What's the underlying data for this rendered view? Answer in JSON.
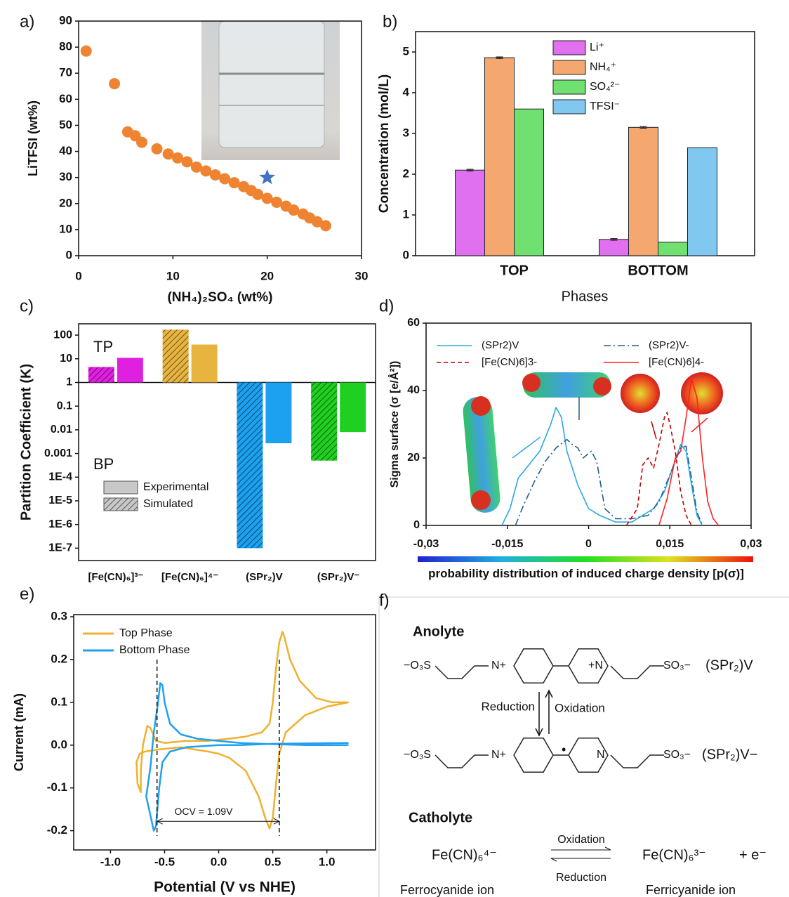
{
  "chart_data": [
    {
      "type": "scatter",
      "panel_label": "a)",
      "xlabel": "(NH₄)₂SO₄ (wt%)",
      "ylabel": "LiTFSI (wt%)",
      "xlim": [
        0,
        30
      ],
      "ylim": [
        0,
        90
      ],
      "xticks": [
        0,
        10,
        20,
        30
      ],
      "yticks": [
        0,
        10,
        20,
        30,
        40,
        50,
        60,
        70,
        80,
        90
      ],
      "series": [
        {
          "color": "#ee8432",
          "marker": "circle",
          "x": [
            0.8,
            3.8,
            5.2,
            6,
            6.7,
            8.3,
            9.5,
            10.5,
            11.5,
            12.5,
            13.5,
            14.5,
            15.5,
            16.5,
            17.5,
            18.3,
            19,
            20,
            21,
            22,
            22.8,
            23.8,
            24.5,
            25.3,
            26.2
          ],
          "values": [
            78.5,
            66,
            47.5,
            46,
            43.5,
            41,
            39,
            37.5,
            36,
            34,
            32.5,
            31,
            29.5,
            28,
            26.5,
            25,
            23.5,
            22,
            20.5,
            19,
            17.5,
            16,
            14.5,
            13,
            11.5
          ]
        },
        {
          "color": "#4472c4",
          "marker": "star",
          "x": [
            20
          ],
          "values": [
            30
          ]
        }
      ]
    },
    {
      "type": "bar",
      "panel_label": "b)",
      "ylabel": "Concentration (mol/L)",
      "xlabel": "Phases",
      "categories": [
        "TOP",
        "BOTTOM"
      ],
      "ylim": [
        0,
        5.5
      ],
      "yticks": [
        0,
        1,
        2,
        3,
        4,
        5
      ],
      "legend": "top-right",
      "series": [
        {
          "name": "Li⁺",
          "color": "#e070f0",
          "values": [
            2.1,
            0.4
          ],
          "errors": [
            0.02,
            0.02
          ]
        },
        {
          "name": "NH₄⁺",
          "color": "#f4a870",
          "values": [
            4.86,
            3.15
          ],
          "errors": [
            0.02,
            0.02
          ]
        },
        {
          "name": "SO₄²⁻",
          "color": "#70e070",
          "values": [
            3.6,
            0.33
          ]
        },
        {
          "name": "TFSI⁻",
          "color": "#80c8f0",
          "values": [
            null,
            2.65
          ]
        }
      ]
    },
    {
      "type": "bar",
      "panel_label": "c)",
      "ylabel": "Partition Coefficient (K)",
      "yscale": "log",
      "bar_base": 1,
      "categories": [
        "[Fe(CN)₆]³⁻",
        "[Fe(CN)₆]⁴⁻",
        "(SPr₂)V",
        "(SPr₂)V⁻"
      ],
      "colors": [
        "#e020e0",
        "#e8b440",
        "#1ca0f0",
        "#20d020"
      ],
      "legend_color": "#c8c8c8",
      "ylim": [
        3e-08,
        300
      ],
      "yticks": [
        {
          "value": 1e-07,
          "label": "1E-7"
        },
        {
          "value": 1e-06,
          "label": "1E-6"
        },
        {
          "value": 1e-05,
          "label": "1E-5"
        },
        {
          "value": 0.0001,
          "label": "1E-4"
        },
        0.001,
        0.01,
        0.1,
        1,
        10,
        100
      ],
      "annotations": [
        "TP",
        "BP"
      ],
      "series": [
        {
          "name": "Simulated",
          "hatch": true,
          "values": [
            4.5,
            170,
            1e-07,
            0.0005
          ]
        },
        {
          "name": "Experimental",
          "hatch": false,
          "values": [
            11,
            40,
            0.0027,
            0.008
          ]
        }
      ]
    },
    {
      "type": "line",
      "panel_label": "d)",
      "ylabel": "Sigma surface (σ [e/Å²])",
      "xlabel": "probability distribution of induced charge density [p(σ)]",
      "xlim": [
        -0.03,
        0.03
      ],
      "ylim": [
        0,
        60
      ],
      "xticks": [
        {
          "value": -0.03,
          "label": "-0,03"
        },
        {
          "value": -0.015,
          "label": "-0,015"
        },
        0,
        {
          "value": 0.015,
          "label": "0,015"
        },
        {
          "value": 0.03,
          "label": "0,03"
        }
      ],
      "yticks": [
        0,
        20,
        40,
        60
      ],
      "series": [
        {
          "name": "(SPr2)V",
          "color": "#2aa8e0",
          "dash": "solid",
          "x": [
            -0.016,
            -0.0145,
            -0.013,
            -0.011,
            -0.009,
            -0.007,
            -0.006,
            -0.005,
            -0.004,
            -0.002,
            0,
            0.002,
            0.005,
            0.008,
            0.01,
            0.012,
            0.014,
            0.0155,
            0.017,
            0.018,
            0.019,
            0.02,
            0.021
          ],
          "values": [
            0,
            5,
            14,
            18,
            22,
            30,
            35,
            32,
            22,
            12,
            5,
            3,
            1,
            1,
            3,
            5,
            10,
            17,
            24,
            22,
            12,
            3,
            0
          ]
        },
        {
          "name": "(SPr2)V-",
          "color": "#1f5f8b",
          "dash": "dashdot",
          "x": [
            -0.0135,
            -0.012,
            -0.01,
            -0.008,
            -0.006,
            -0.004,
            -0.003,
            -0.002,
            -0.001,
            0.0005,
            0.0015,
            0.003,
            0.005,
            0.008,
            0.011,
            0.013,
            0.015,
            0.017,
            0.018,
            0.019,
            0.02,
            0.021
          ],
          "values": [
            0,
            6,
            13,
            19,
            23,
            25.5,
            24,
            23,
            20,
            22,
            19,
            5,
            2,
            2,
            3,
            7,
            15,
            23,
            23.5,
            14,
            4,
            0
          ]
        },
        {
          "name": "[Fe(CN)6]3-",
          "color": "#c00000",
          "dash": "dash",
          "x": [
            0.007,
            0.009,
            0.01,
            0.011,
            0.012,
            0.013,
            0.014,
            0.0145,
            0.015,
            0.016,
            0.017,
            0.018,
            0.019
          ],
          "values": [
            0,
            5,
            18,
            20,
            17,
            24,
            32,
            33.5,
            30,
            22,
            10,
            3,
            0
          ]
        },
        {
          "name": "[Fe(CN)6]4-",
          "color": "#ff2020",
          "dash": "solid",
          "x": [
            0.013,
            0.0145,
            0.016,
            0.017,
            0.018,
            0.019,
            0.02,
            0.021,
            0.022,
            0.023,
            0.024
          ],
          "values": [
            0,
            8,
            20,
            22,
            32,
            43.5,
            38,
            20,
            7,
            2,
            0
          ]
        }
      ]
    },
    {
      "type": "line",
      "panel_label": "e)",
      "ylabel": "Current (mA)",
      "xlabel": "Potential (V vs NHE)",
      "xlim": [
        -1.34,
        1.45
      ],
      "ylim": [
        -0.245,
        0.305
      ],
      "xticks": [
        {
          "value": -1,
          "label": "-1.0"
        },
        -0.5,
        {
          "value": 0,
          "label": "0.0"
        },
        0.5,
        {
          "value": 1,
          "label": "1.0"
        }
      ],
      "yticks": [
        -0.2,
        -0.1,
        {
          "value": 0,
          "label": "0.0"
        },
        0.1,
        0.2,
        0.3
      ],
      "vlines": [
        -0.57,
        0.56
      ],
      "annotation": "OCV = 1.09V",
      "annotation_y": -0.178,
      "series": [
        {
          "name": "Top Phase",
          "color": "#f0b030",
          "x": [
            1.2,
            1.05,
            0.9,
            0.75,
            0.66,
            0.61,
            0.59,
            0.56,
            0.53,
            0.5,
            0.47,
            0.4,
            0.25,
            0.1,
            -0.1,
            -0.3,
            -0.5,
            -0.58,
            -0.63,
            -0.66,
            -0.7,
            -0.72,
            -0.72,
            -0.75,
            -0.76,
            -0.73,
            -0.68,
            -0.55,
            -0.35,
            -0.1,
            0,
            0.1,
            0.25,
            0.37,
            0.43,
            0.47,
            0.5,
            0.53,
            0.56,
            0.62,
            0.8,
            1,
            1.2
          ],
          "values": [
            0.1,
            0.1,
            0.11,
            0.15,
            0.2,
            0.25,
            0.265,
            0.24,
            0.18,
            0.1,
            0.05,
            0.03,
            0.02,
            0.015,
            0.01,
            0.01,
            0.005,
            0.01,
            0.04,
            0.045,
            0,
            -0.06,
            -0.11,
            -0.09,
            -0.04,
            -0.02,
            -0.015,
            -0.01,
            -0.005,
            -0.015,
            -0.02,
            -0.03,
            -0.06,
            -0.12,
            -0.17,
            -0.195,
            -0.17,
            -0.09,
            -0.02,
            0.03,
            0.07,
            0.09,
            0.1
          ]
        },
        {
          "name": "Bottom Phase",
          "color": "#20a0f0",
          "x": [
            1.2,
            0.8,
            0.4,
            0.2,
            0,
            -0.2,
            -0.35,
            -0.45,
            -0.5,
            -0.52,
            -0.54,
            -0.56,
            -0.6,
            -0.63,
            -0.67,
            -0.6,
            -0.58,
            -0.55,
            -0.52,
            -0.45,
            -0.3,
            0,
            0.2,
            0.5,
            1.2
          ],
          "values": [
            0,
            0,
            0.003,
            0.005,
            0.01,
            0.015,
            0.025,
            0.05,
            0.1,
            0.14,
            0.145,
            0.1,
            0.03,
            -0.05,
            -0.12,
            -0.2,
            -0.19,
            -0.1,
            -0.04,
            -0.015,
            -0.005,
            0,
            0,
            0.003,
            0.005
          ]
        }
      ]
    }
  ],
  "scheme": {
    "panel_label": "f)",
    "anolyte": {
      "heading": "Anolyte",
      "left_group": "−O₃S",
      "n_left": "N+",
      "n_right": "+N",
      "right_group": "SO₃−",
      "name": "(SPr₂)V"
    },
    "arrows": {
      "down": "Reduction",
      "up": "Oxidation"
    },
    "reduced": {
      "left_group": "−O₃S",
      "n_left": "N+",
      "radical": "•",
      "n_right": "N",
      "right_group": "SO₃−",
      "name": "(SPr₂)V−"
    },
    "catholyte": {
      "heading": "Catholyte",
      "reactant": "Fe(CN)₆⁴⁻",
      "forward": "Oxidation",
      "product": "Fe(CN)₆³⁻",
      "electron": "+ e⁻",
      "backward": "Reduction",
      "reactant_name": "Ferrocyanide ion",
      "product_name": "Ferricyanide ion"
    }
  }
}
